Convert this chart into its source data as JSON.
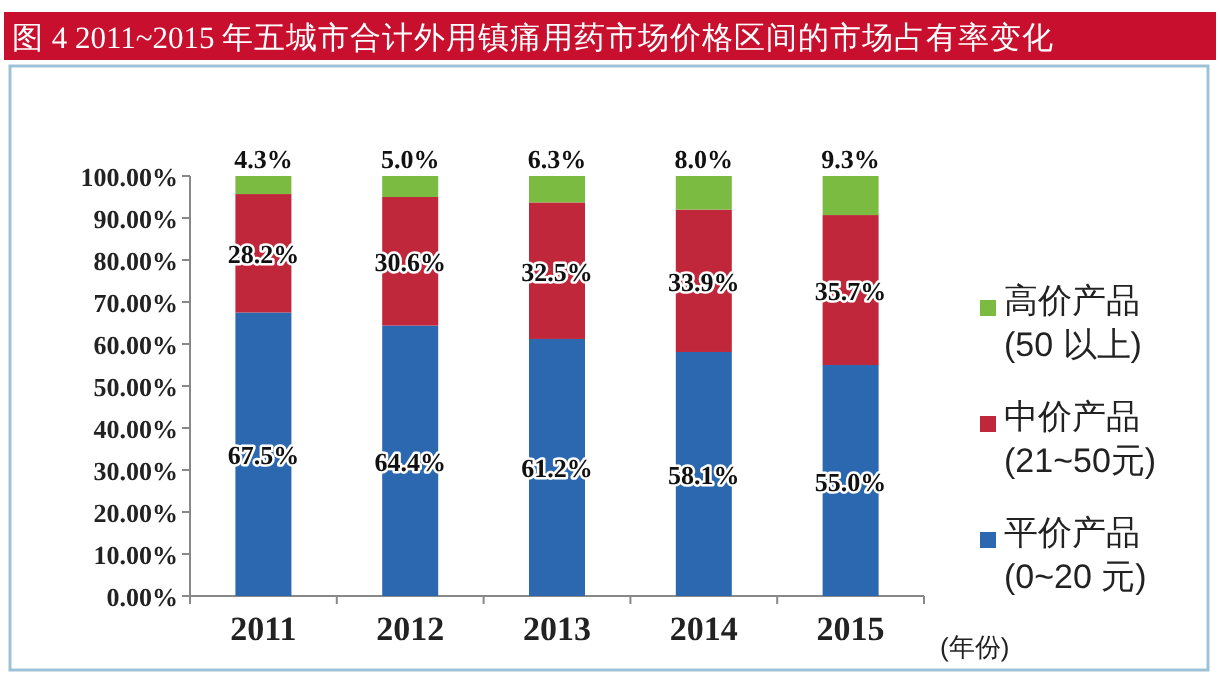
{
  "chart_data": {
    "type": "bar",
    "title": "图 4 2011~2015 年五城市合计外用镇痛用药市场价格区间的市场占有率变化",
    "xlabel": "(年份)",
    "categories": [
      "2011",
      "2012",
      "2013",
      "2014",
      "2015"
    ],
    "stacked": true,
    "ylim": [
      0,
      100
    ],
    "yticks": [
      {
        "value": 0,
        "label": "0.00%"
      },
      {
        "value": 10,
        "label": "10.00%"
      },
      {
        "value": 20,
        "label": "20.00%"
      },
      {
        "value": 30,
        "label": "30.00%"
      },
      {
        "value": 40,
        "label": "40.00%"
      },
      {
        "value": 50,
        "label": "50.00%"
      },
      {
        "value": 60,
        "label": "60.00%"
      },
      {
        "value": 70,
        "label": "70.00%"
      },
      {
        "value": 80,
        "label": "80.00%"
      },
      {
        "value": 90,
        "label": "90.00%"
      },
      {
        "value": 100,
        "label": "100.00%"
      }
    ],
    "series": [
      {
        "name": "平价产品\n(0~20 元)",
        "color": "#2b68b0",
        "values": [
          67.5,
          64.4,
          61.2,
          58.1,
          55.0
        ],
        "value_labels": [
          "67.5%",
          "64.4%",
          "61.2%",
          "58.1%",
          "55.0%"
        ]
      },
      {
        "name": "中价产品\n(21~50元)",
        "color": "#c1273a",
        "values": [
          28.2,
          30.6,
          32.5,
          33.9,
          35.7
        ],
        "value_labels": [
          "28.2%",
          "30.6%",
          "32.5%",
          "33.9%",
          "35.7%"
        ]
      },
      {
        "name": "高价产品\n(50 以上)",
        "color": "#7bbb41",
        "values": [
          4.3,
          5.0,
          6.3,
          8.0,
          9.3
        ],
        "value_labels": [
          "4.3%",
          "5.0%",
          "6.3%",
          "8.0%",
          "9.3%"
        ]
      }
    ],
    "legend": "right"
  }
}
